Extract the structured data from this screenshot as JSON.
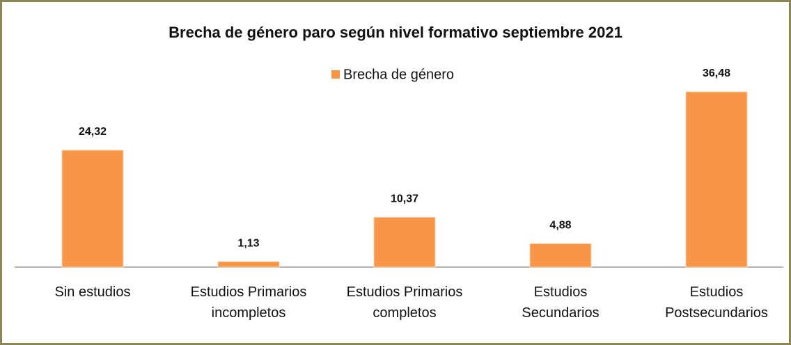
{
  "chart_data": {
    "type": "bar",
    "title": "Brecha de género paro según nivel formativo  septiembre 2021",
    "categories": [
      "Sin estudios",
      "Estudios Primarios\nincompletos",
      "Estudios Primarios\ncompletos",
      "Estudios\nSecundarios",
      "Estudios\nPostsecundarios"
    ],
    "series": [
      {
        "name": "Brecha de género",
        "color": "#f79646",
        "values": [
          24.32,
          1.13,
          10.37,
          4.88,
          36.48
        ],
        "value_labels": [
          "24,32",
          "1,13",
          "10,37",
          "4,88",
          "36,48"
        ]
      }
    ],
    "legend": "top"
  }
}
